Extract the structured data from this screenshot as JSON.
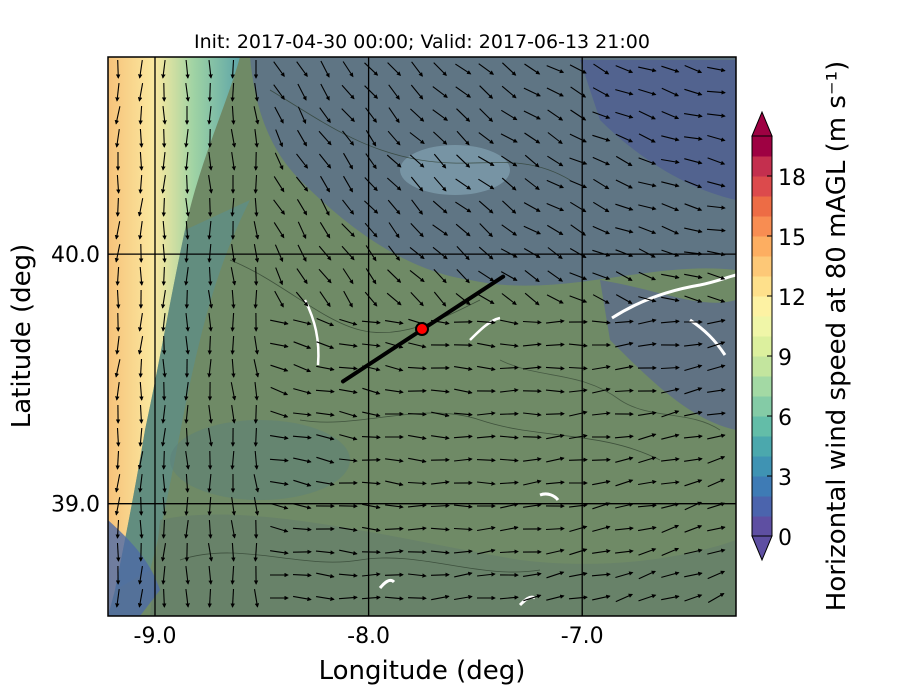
{
  "chart_data": {
    "type": "heatmap",
    "title": "Init: 2017-04-30 00:00; Valid: 2017-06-13 21:00",
    "xlabel": "Longitude (deg)",
    "ylabel": "Latitude (deg)",
    "xlim": [
      -9.22,
      -6.28
    ],
    "ylim": [
      38.55,
      40.79
    ],
    "x_ticks": [
      -9.0,
      -8.0,
      -7.0
    ],
    "x_tick_labels": [
      "-9.0",
      "-8.0",
      "-7.0"
    ],
    "y_ticks": [
      39.0,
      40.0
    ],
    "y_tick_labels": [
      "39.0",
      "40.0"
    ],
    "grid": true,
    "colorbar": {
      "label": "Horizontal wind speed at 80 mAGL (m s⁻¹)",
      "range": [
        0,
        20
      ],
      "level_step": 1,
      "ticks": [
        0,
        3,
        6,
        9,
        12,
        15,
        18
      ],
      "tick_labels": [
        "0",
        "3",
        "6",
        "9",
        "12",
        "15",
        "18"
      ],
      "extend": "both",
      "colors": [
        "#5e4fa2",
        "#4b64ad",
        "#3e7bb5",
        "#3f93b3",
        "#4ba8ad",
        "#63bda8",
        "#84cba6",
        "#a3d9a4",
        "#c3e59e",
        "#dcf09e",
        "#f0f6a8",
        "#fdf2a3",
        "#fee08b",
        "#fdc877",
        "#fdae61",
        "#f88d52",
        "#ed6c45",
        "#dc4a4c",
        "#c42f4e",
        "#9e0142"
      ]
    },
    "site_marker": {
      "lon": -7.75,
      "lat": 39.7,
      "color": "#ff0000"
    },
    "transect": {
      "start": {
        "lon": -8.12,
        "lat": 39.49
      },
      "end": {
        "lon": -7.37,
        "lat": 39.91
      }
    }
  }
}
